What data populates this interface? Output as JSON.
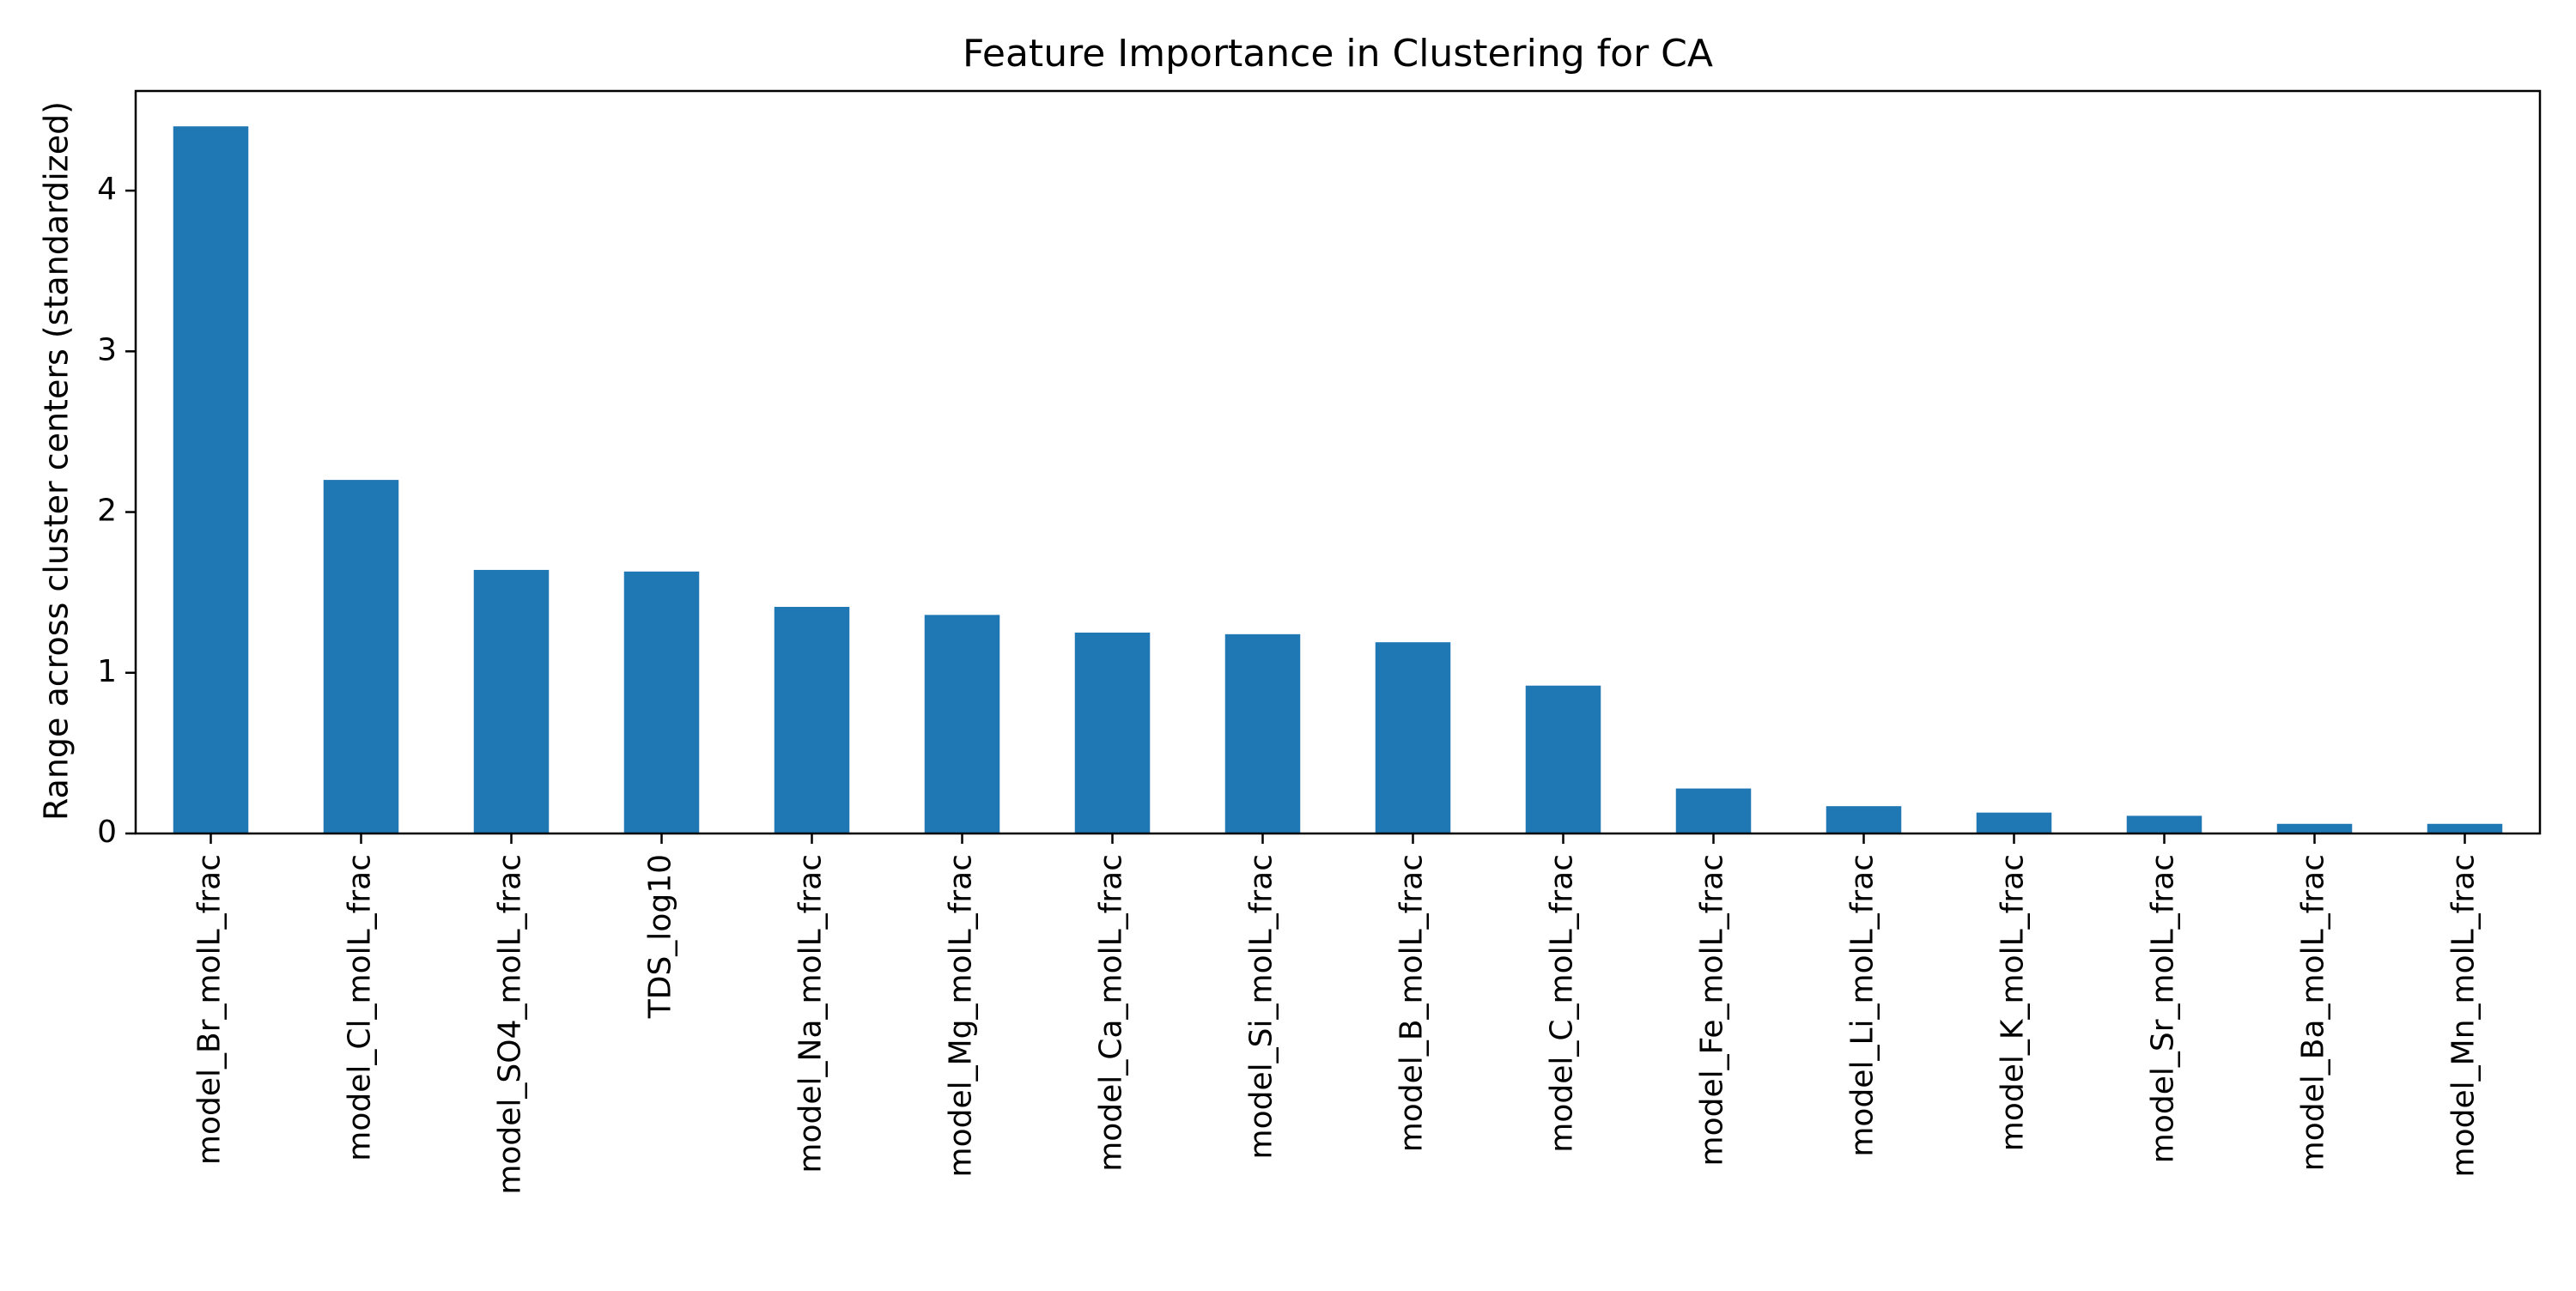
{
  "chart_data": {
    "type": "bar",
    "title": "Feature Importance in Clustering for CA",
    "xlabel": "",
    "ylabel": "Range across cluster centers (standardized)",
    "categories": [
      "model_Br_molL_frac",
      "model_Cl_molL_frac",
      "model_SO4_molL_frac",
      "TDS_log10",
      "model_Na_molL_frac",
      "model_Mg_molL_frac",
      "model_Ca_molL_frac",
      "model_Si_molL_frac",
      "model_B_molL_frac",
      "model_C_molL_frac",
      "model_Fe_molL_frac",
      "model_Li_molL_frac",
      "model_K_molL_frac",
      "model_Sr_molL_frac",
      "model_Ba_molL_frac",
      "model_Mn_molL_frac"
    ],
    "values": [
      4.4,
      2.2,
      1.64,
      1.63,
      1.41,
      1.36,
      1.25,
      1.24,
      1.19,
      0.92,
      0.28,
      0.17,
      0.13,
      0.11,
      0.06,
      0.06
    ],
    "ylim": [
      0,
      4.62
    ],
    "yticks": [
      "0",
      "1",
      "2",
      "3",
      "4"
    ],
    "grid": false,
    "legend": "none",
    "bar_color": "#1f77b4"
  }
}
